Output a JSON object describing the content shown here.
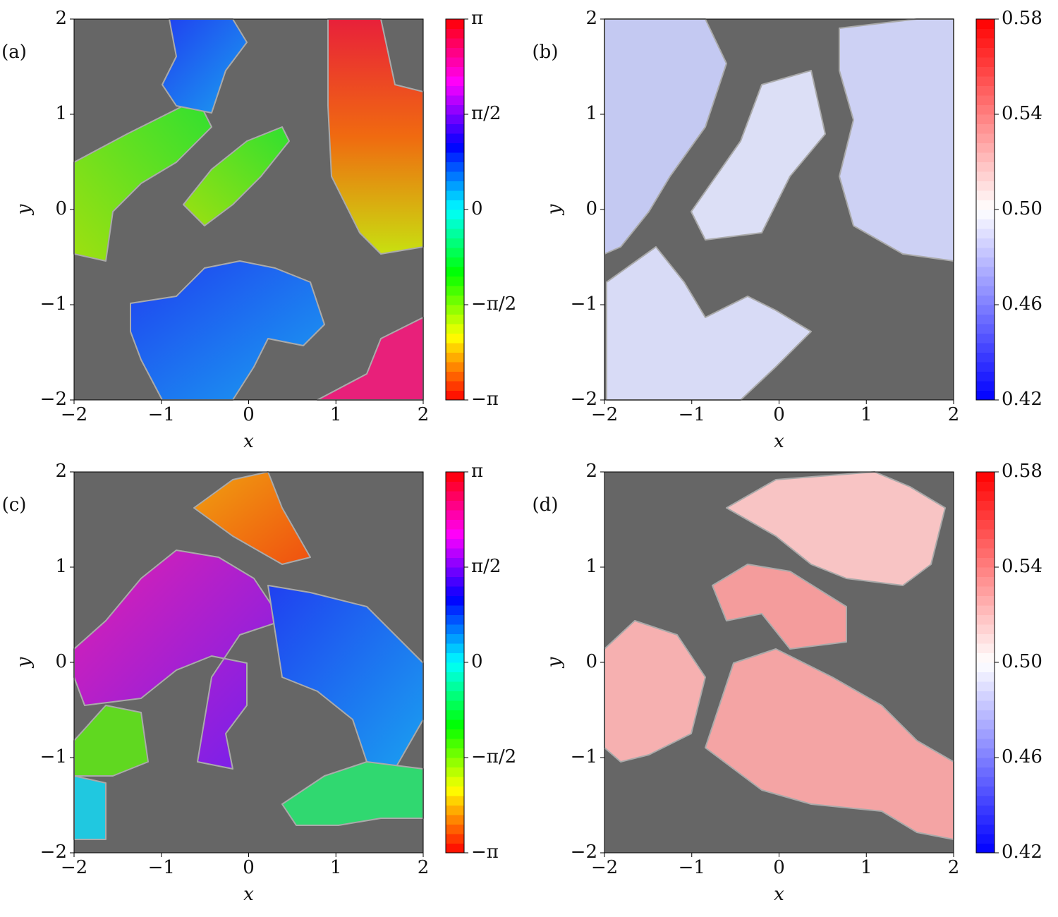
{
  "chart_data": [
    {
      "type": "heatmap",
      "panel_label": "(a)",
      "xlabel": "x",
      "ylabel": "y",
      "xlim": [
        -2,
        2
      ],
      "ylim": [
        -2,
        2
      ],
      "xticks": [
        {
          "value": -2,
          "label": "−2"
        },
        {
          "value": -1,
          "label": "−1"
        },
        0,
        1,
        2
      ],
      "yticks": [
        {
          "value": -2,
          "label": "−2"
        },
        {
          "value": -1,
          "label": "−1"
        },
        0,
        1,
        2
      ],
      "colormap": "hsv",
      "clim": [
        -3.14159,
        3.14159
      ],
      "cticks": [
        {
          "value": -3.14159,
          "label": "−π"
        },
        {
          "value": -1.5708,
          "label": "−π/2"
        },
        0,
        {
          "value": 1.5708,
          "label": "π/2"
        },
        {
          "value": 3.14159,
          "label": "π"
        }
      ]
    },
    {
      "type": "heatmap",
      "panel_label": "(b)",
      "xlabel": "x",
      "ylabel": "y",
      "xlim": [
        -2,
        2
      ],
      "ylim": [
        -2,
        2
      ],
      "xticks": [
        {
          "value": -2,
          "label": "−2"
        },
        {
          "value": -1,
          "label": "−1"
        },
        0,
        1,
        2
      ],
      "yticks": [
        {
          "value": -2,
          "label": "−2"
        },
        {
          "value": -1,
          "label": "−1"
        },
        0,
        1,
        2
      ],
      "colormap": "bwr",
      "clim": [
        0.42,
        0.58
      ],
      "cticks": [
        0.42,
        0.46,
        {
          "value": 0.5,
          "label": "0.50"
        },
        0.54,
        0.58
      ]
    },
    {
      "type": "heatmap",
      "panel_label": "(c)",
      "xlabel": "x",
      "ylabel": "y",
      "xlim": [
        -2,
        2
      ],
      "ylim": [
        -2,
        2
      ],
      "xticks": [
        {
          "value": -2,
          "label": "−2"
        },
        {
          "value": -1,
          "label": "−1"
        },
        0,
        1,
        2
      ],
      "yticks": [
        {
          "value": -2,
          "label": "−2"
        },
        {
          "value": -1,
          "label": "−1"
        },
        0,
        1,
        2
      ],
      "colormap": "hsv",
      "clim": [
        -3.14159,
        3.14159
      ],
      "cticks": [
        {
          "value": -3.14159,
          "label": "−π"
        },
        {
          "value": -1.5708,
          "label": "−π/2"
        },
        0,
        {
          "value": 1.5708,
          "label": "π/2"
        },
        {
          "value": 3.14159,
          "label": "π"
        }
      ]
    },
    {
      "type": "heatmap",
      "panel_label": "(d)",
      "xlabel": "x",
      "ylabel": "y",
      "xlim": [
        -2,
        2
      ],
      "ylim": [
        -2,
        2
      ],
      "xticks": [
        {
          "value": -2,
          "label": "−2"
        },
        {
          "value": -1,
          "label": "−1"
        },
        0,
        1,
        2
      ],
      "yticks": [
        {
          "value": -2,
          "label": "−2"
        },
        {
          "value": -1,
          "label": "−1"
        },
        0,
        1,
        2
      ],
      "colormap": "bwr",
      "clim": [
        0.42,
        0.58
      ],
      "cticks": [
        0.42,
        0.46,
        {
          "value": 0.5,
          "label": "0.50"
        },
        0.54,
        0.58
      ]
    }
  ]
}
